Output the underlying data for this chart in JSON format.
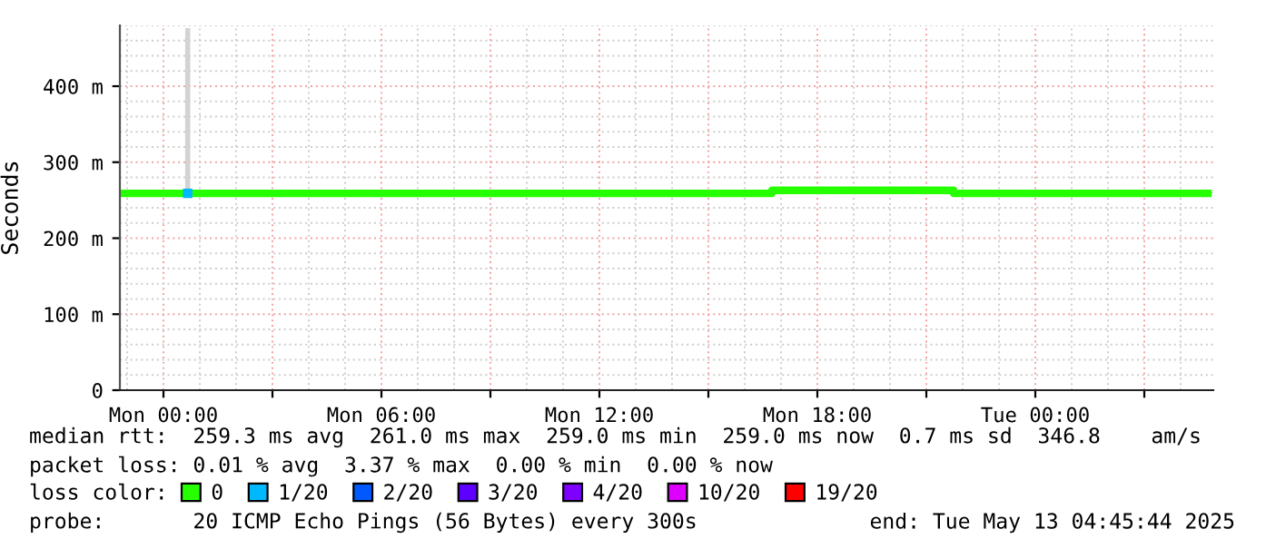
{
  "chart_data": {
    "type": "step",
    "ylabel": "Seconds",
    "legend_title": "loss color:",
    "legend": "bottom",
    "grid": true,
    "marker": "none",
    "xlim": [
      "2025-05-11T22:48",
      "2025-05-13T04:54"
    ],
    "xticks": [
      {
        "value": "2025-05-12T00:00",
        "label": "Mon 00:00"
      },
      {
        "value": "2025-05-12T03:00",
        "label": null
      },
      {
        "value": "2025-05-12T06:00",
        "label": "Mon 06:00"
      },
      {
        "value": "2025-05-12T09:00",
        "label": null
      },
      {
        "value": "2025-05-12T12:00",
        "label": "Mon 12:00"
      },
      {
        "value": "2025-05-12T15:00",
        "label": null
      },
      {
        "value": "2025-05-12T18:00",
        "label": "Mon 18:00"
      },
      {
        "value": "2025-05-12T21:00",
        "label": null
      },
      {
        "value": "2025-05-13T00:00",
        "label": "Tue 00:00"
      },
      {
        "value": "2025-05-13T03:00",
        "label": null
      }
    ],
    "ylim": [
      0,
      480
    ],
    "yticks": [
      0,
      {
        "value": 100,
        "label": "100 m"
      },
      {
        "value": 200,
        "label": "200 m"
      },
      {
        "value": 300,
        "label": "300 m"
      },
      {
        "value": 400,
        "label": "400 m"
      }
    ],
    "series": [
      {
        "type": "line",
        "color": "#d3d3d3",
        "x": [
          "2025-05-12T00:40",
          "2025-05-12T00:40"
        ],
        "values": [
          259,
          473
        ]
      },
      {
        "name": "0",
        "color": "#26ff00",
        "x": [
          "2025-05-11T22:48",
          "2025-05-12T00:37",
          "2025-05-12T00:43",
          "2025-05-12T16:45",
          "2025-05-12T21:45",
          "2025-05-13T04:45"
        ],
        "values": [
          259,
          null,
          259,
          263,
          259,
          259
        ]
      },
      {
        "name": "1/20",
        "type": "scatter",
        "marker": "square",
        "color": "#00b8ff",
        "x": [
          "2025-05-12T00:40"
        ],
        "values": [
          259
        ]
      },
      {
        "name": "2/20",
        "color": "#0059ff"
      },
      {
        "name": "3/20",
        "color": "#5e00ff"
      },
      {
        "name": "4/20",
        "color": "#7e00ff"
      },
      {
        "name": "10/20",
        "color": "#dd00ff"
      },
      {
        "name": "19/20",
        "color": "#ff0000"
      }
    ],
    "annotations": [
      "median rtt:  259.3 ms avg  261.0 ms max  259.0 ms min  259.0 ms now  0.7 ms sd  346.8    am/s",
      "packet loss: 0.01 % avg  3.37 % max  0.00 % min  0.00 % now",
      "probe:       20 ICMP Echo Pings (56 Bytes) every 300s",
      "end: Tue May 13 04:45:44 2025"
    ]
  }
}
